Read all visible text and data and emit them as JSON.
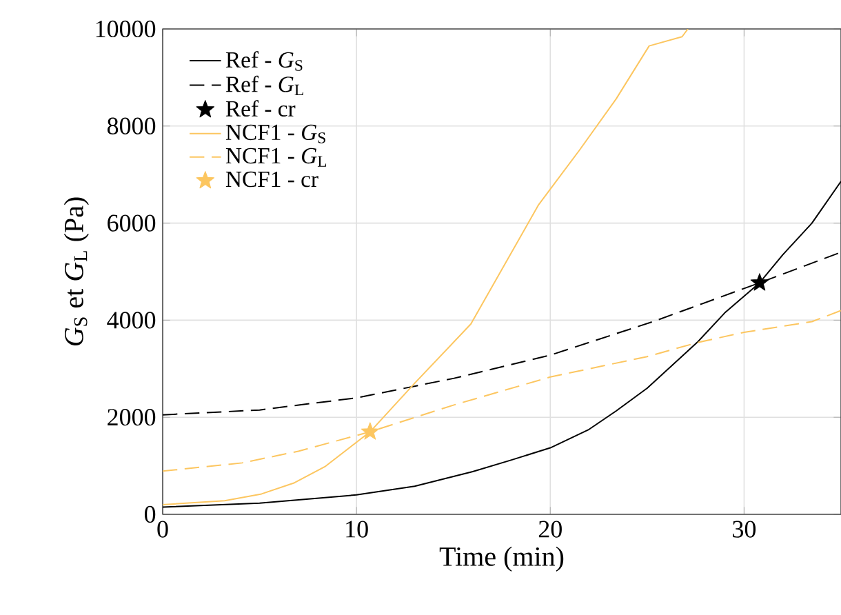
{
  "chart_data": {
    "type": "line",
    "xlabel": "Time (min)",
    "ylabel": "*G*$_{S}$ et *G*$_{L}$ (Pa)",
    "xlim": [
      0,
      35
    ],
    "ylim": [
      0,
      10000
    ],
    "xticks": [
      0,
      10,
      20,
      30
    ],
    "yticks": [
      0,
      2000,
      4000,
      6000,
      8000,
      10000
    ],
    "grid": true,
    "legend": "top left",
    "series": [
      {
        "name": "Ref - *G*$_{S}$",
        "line_style": "solid",
        "color": "#000000",
        "x": [
          0,
          5,
          10,
          13,
          16,
          18,
          20,
          22,
          23.4,
          25,
          27.6,
          29,
          30.8,
          32,
          33.5,
          35
        ],
        "values": [
          150,
          230,
          400,
          580,
          880,
          1120,
          1370,
          1750,
          2130,
          2600,
          3550,
          4150,
          4770,
          5350,
          6000,
          6860
        ]
      },
      {
        "name": "Ref - *G*$_{L}$",
        "line_style": "dashed",
        "color": "#000000",
        "x": [
          0,
          5,
          10,
          15,
          20,
          25.3,
          30.8,
          35
        ],
        "values": [
          2050,
          2150,
          2400,
          2800,
          3280,
          3970,
          4770,
          5400
        ]
      },
      {
        "name": "Ref - cr",
        "type": "scatter",
        "marker": "star",
        "color": "#000000",
        "x": [
          30.8
        ],
        "values": [
          4770
        ]
      },
      {
        "name": "NCF1 - *G*$_{S}$",
        "line_style": "solid",
        "color": "#fcc660",
        "x": [
          0,
          3.2,
          5.1,
          6.8,
          8.4,
          10.7,
          13,
          15.9,
          19.4,
          21.5,
          23.4,
          25.1,
          26.8,
          27.1
        ],
        "values": [
          200,
          280,
          420,
          650,
          990,
          1700,
          2700,
          3920,
          6380,
          7500,
          8560,
          9650,
          9840,
          10000
        ]
      },
      {
        "name": "NCF1 - *G*$_{L}$",
        "line_style": "dashed",
        "color": "#fcc660",
        "x": [
          0,
          4.1,
          7,
          10.7,
          15,
          20,
          25,
          27.6,
          30,
          33.5,
          35
        ],
        "values": [
          890,
          1060,
          1300,
          1700,
          2250,
          2830,
          3250,
          3540,
          3750,
          3970,
          4200
        ]
      },
      {
        "name": "NCF1 - cr",
        "type": "scatter",
        "marker": "star",
        "color": "#fcc660",
        "x": [
          10.7
        ],
        "values": [
          1700
        ]
      }
    ]
  }
}
